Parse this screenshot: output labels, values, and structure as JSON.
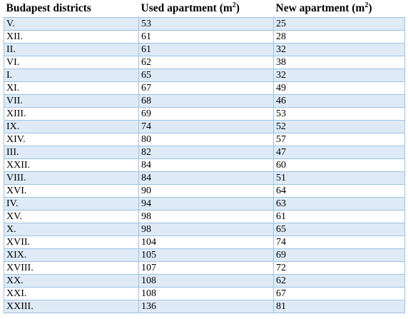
{
  "table": {
    "headers": {
      "district": "Budapest districts",
      "used": "Used apartment (m",
      "new": "New apartment (m",
      "unit_sup": "2",
      "close_paren": ")"
    },
    "rows": [
      {
        "district": "V.",
        "used": "53",
        "new": "25"
      },
      {
        "district": "XII.",
        "used": "61",
        "new": "28"
      },
      {
        "district": "II.",
        "used": "61",
        "new": "32"
      },
      {
        "district": "VI.",
        "used": "62",
        "new": "38"
      },
      {
        "district": "I.",
        "used": "65",
        "new": "32"
      },
      {
        "district": "XI.",
        "used": "67",
        "new": "49"
      },
      {
        "district": "VII.",
        "used": "68",
        "new": "46"
      },
      {
        "district": "XIII.",
        "used": "69",
        "new": "53"
      },
      {
        "district": "IX.",
        "used": "74",
        "new": "52"
      },
      {
        "district": "XIV.",
        "used": "80",
        "new": "57"
      },
      {
        "district": "III.",
        "used": "82",
        "new": "47"
      },
      {
        "district": "XXII.",
        "used": "84",
        "new": "60"
      },
      {
        "district": "VIII.",
        "used": "84",
        "new": "51"
      },
      {
        "district": "XVI.",
        "used": "90",
        "new": "64"
      },
      {
        "district": "IV.",
        "used": "94",
        "new": "63"
      },
      {
        "district": "XV.",
        "used": "98",
        "new": "61"
      },
      {
        "district": "X.",
        "used": "98",
        "new": "65"
      },
      {
        "district": "XVII.",
        "used": "104",
        "new": "74"
      },
      {
        "district": "XIX.",
        "used": "105",
        "new": "69"
      },
      {
        "district": "XVIII.",
        "used": "107",
        "new": "72"
      },
      {
        "district": "XX.",
        "used": "108",
        "new": "62"
      },
      {
        "district": "XXI.",
        "used": "108",
        "new": "67"
      },
      {
        "district": "XXIII.",
        "used": "136",
        "new": "81"
      }
    ]
  },
  "colors": {
    "band": "#deeaf6",
    "border": "#9cc2e5"
  }
}
